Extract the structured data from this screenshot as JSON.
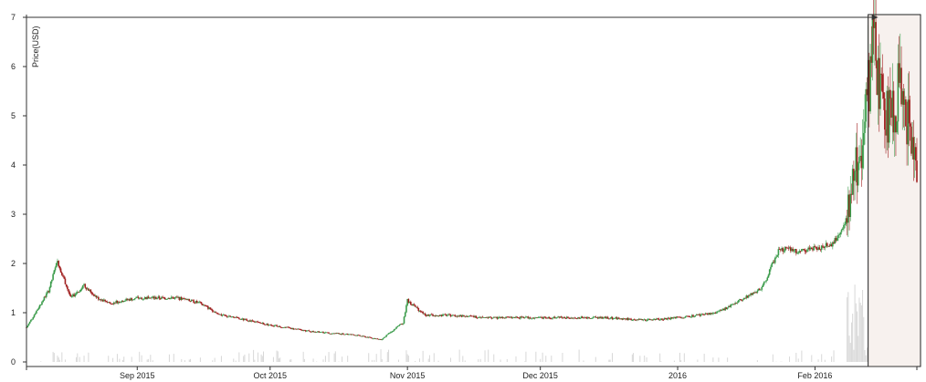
{
  "chart_data": {
    "type": "candlestick",
    "title": "",
    "xlabel": "",
    "ylabel": "Price(USD)",
    "ylim": [
      0,
      7
    ],
    "y_ticks": [
      0,
      1,
      2,
      3,
      4,
      5,
      6,
      7
    ],
    "x_range": [
      "2015-08-07",
      "2016-02-24"
    ],
    "x_ticks": [
      {
        "date": "2015-09-01",
        "label": "Sep 2015"
      },
      {
        "date": "2015-10-01",
        "label": "Oct 2015"
      },
      {
        "date": "2015-11-01",
        "label": "Nov 2015"
      },
      {
        "date": "2015-12-01",
        "label": "Dec 2015"
      },
      {
        "date": "2016-01-01",
        "label": "2016"
      },
      {
        "date": "2016-02-01",
        "label": "Feb 2016"
      }
    ],
    "colors": {
      "up": "#3a9b4a",
      "down": "#a01f1f",
      "volume": "#d8d8d8",
      "highlight_fill": "#f7f1ee",
      "annotation": "#333333"
    },
    "highlight": {
      "start": "2016-02-13",
      "end": "2016-02-24",
      "arrow_to_price": 7.0
    },
    "price_anchors": [
      [
        "2015-08-07",
        0.7
      ],
      [
        "2015-08-09",
        1.0
      ],
      [
        "2015-08-12",
        1.45
      ],
      [
        "2015-08-14",
        2.05
      ],
      [
        "2015-08-17",
        1.3
      ],
      [
        "2015-08-20",
        1.55
      ],
      [
        "2015-08-23",
        1.3
      ],
      [
        "2015-08-26",
        1.2
      ],
      [
        "2015-09-01",
        1.3
      ],
      [
        "2015-09-10",
        1.3
      ],
      [
        "2015-09-15",
        1.2
      ],
      [
        "2015-09-20",
        0.95
      ],
      [
        "2015-10-01",
        0.75
      ],
      [
        "2015-10-10",
        0.62
      ],
      [
        "2015-10-20",
        0.55
      ],
      [
        "2015-10-26",
        0.45
      ],
      [
        "2015-10-31",
        0.8
      ],
      [
        "2015-11-01",
        1.25
      ],
      [
        "2015-11-05",
        0.95
      ],
      [
        "2015-11-10",
        0.95
      ],
      [
        "2015-11-20",
        0.9
      ],
      [
        "2015-12-01",
        0.9
      ],
      [
        "2015-12-15",
        0.9
      ],
      [
        "2015-12-25",
        0.85
      ],
      [
        "2016-01-01",
        0.9
      ],
      [
        "2016-01-10",
        1.0
      ],
      [
        "2016-01-15",
        1.25
      ],
      [
        "2016-01-20",
        1.5
      ],
      [
        "2016-01-24",
        2.3
      ],
      [
        "2016-01-28",
        2.25
      ],
      [
        "2016-02-01",
        2.3
      ],
      [
        "2016-02-05",
        2.4
      ],
      [
        "2016-02-08",
        2.9
      ],
      [
        "2016-02-10",
        3.8
      ],
      [
        "2016-02-12",
        4.6
      ],
      [
        "2016-02-14",
        6.4
      ],
      [
        "2016-02-17",
        5.0
      ],
      [
        "2016-02-19",
        5.2
      ],
      [
        "2016-02-20",
        5.5
      ],
      [
        "2016-02-22",
        4.8
      ],
      [
        "2016-02-24",
        4.1
      ]
    ]
  }
}
